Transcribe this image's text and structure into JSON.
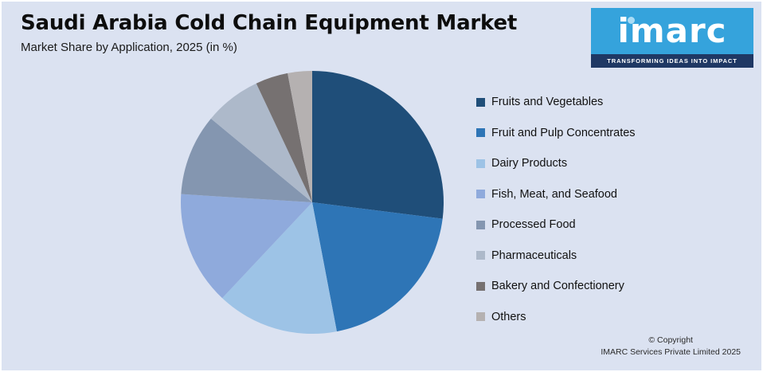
{
  "header": {
    "title": "Saudi Arabia Cold Chain Equipment Market",
    "subtitle": "Market Share by Application, 2025 (in %)"
  },
  "logo": {
    "brand": "imarc",
    "tagline": "TRANSFORMING IDEAS INTO IMPACT",
    "bg_color": "#35a3dc",
    "tagline_bg_color": "#1f3864"
  },
  "footer": {
    "line1": "© Copyright",
    "line2": "IMARC Services Private Limited 2025"
  },
  "chart_data": {
    "type": "pie",
    "title": "Saudi Arabia Cold Chain Equipment Market",
    "subtitle": "Market Share by Application, 2025 (in %)",
    "legend_position": "right",
    "background_color": "#dbe2f1",
    "start_angle_deg": -90,
    "direction": "clockwise",
    "series": [
      {
        "name": "Fruits and Vegetables",
        "value": 27,
        "color": "#1f4e79"
      },
      {
        "name": "Fruit and Pulp Concentrates",
        "value": 20,
        "color": "#2e75b6"
      },
      {
        "name": "Dairy Products",
        "value": 15,
        "color": "#9dc3e6"
      },
      {
        "name": "Fish, Meat, and Seafood",
        "value": 14,
        "color": "#8faadc"
      },
      {
        "name": "Processed Food",
        "value": 10,
        "color": "#8496b0"
      },
      {
        "name": "Pharmaceuticals",
        "value": 7,
        "color": "#adb9ca"
      },
      {
        "name": "Bakery and Confectionery",
        "value": 4,
        "color": "#767171"
      },
      {
        "name": "Others",
        "value": 3,
        "color": "#b5b1b1"
      }
    ]
  }
}
